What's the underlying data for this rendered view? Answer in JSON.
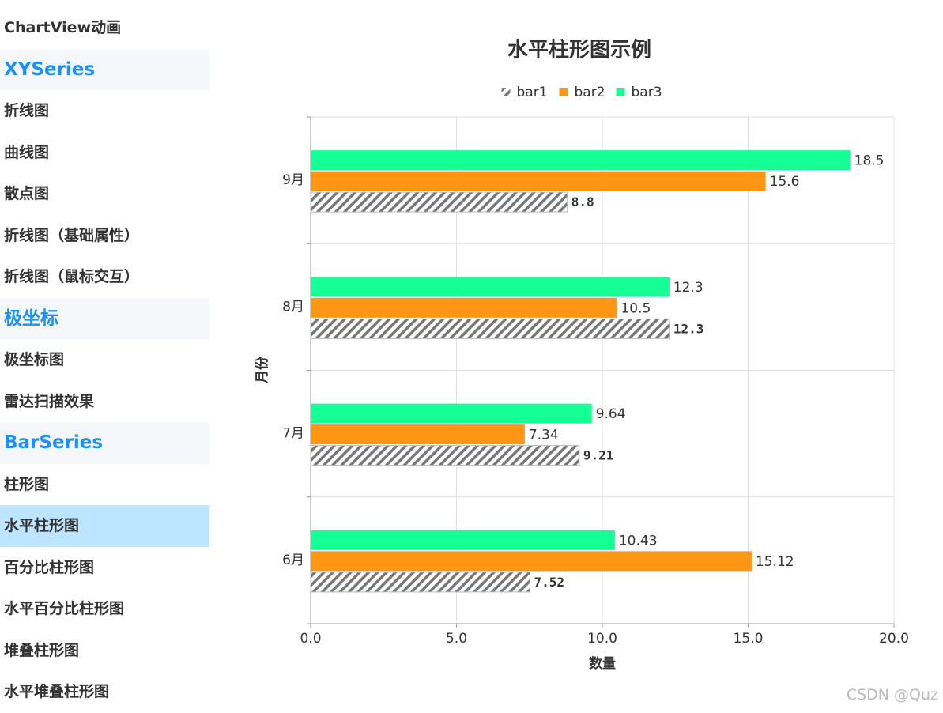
{
  "sidebar": {
    "top": "ChartView动画",
    "sections": [
      {
        "title": "XYSeries",
        "items": [
          {
            "label": "折线图"
          },
          {
            "label": "曲线图"
          },
          {
            "label": "散点图"
          },
          {
            "label": "折线图（基础属性）"
          },
          {
            "label": "折线图（鼠标交互）"
          }
        ]
      },
      {
        "title": "极坐标",
        "items": [
          {
            "label": "极坐标图"
          },
          {
            "label": "雷达扫描效果"
          }
        ]
      },
      {
        "title": "BarSeries",
        "items": [
          {
            "label": "柱形图"
          },
          {
            "label": "水平柱形图",
            "selected": true
          },
          {
            "label": "百分比柱形图"
          },
          {
            "label": "水平百分比柱形图"
          },
          {
            "label": "堆叠柱形图"
          },
          {
            "label": "水平堆叠柱形图"
          }
        ]
      }
    ]
  },
  "chart_data": {
    "type": "hbar",
    "title": "水平柱形图示例",
    "categories": [
      "6月",
      "7月",
      "8月",
      "9月"
    ],
    "series": [
      {
        "name": "bar1",
        "color": "#777777",
        "pattern": "hatch",
        "values": [
          7.52,
          9.21,
          12.3,
          8.8
        ]
      },
      {
        "name": "bar2",
        "color": "#ff9514",
        "values": [
          15.12,
          7.34,
          10.5,
          15.6
        ]
      },
      {
        "name": "bar3",
        "color": "#14ff94",
        "values": [
          10.43,
          9.64,
          12.3,
          18.5
        ]
      }
    ],
    "x_label": "数量",
    "y_label": "月份",
    "xlim": [
      0,
      20
    ],
    "xticks": [
      {
        "value": 0,
        "label": "0.0"
      },
      {
        "value": 5,
        "label": "5.0"
      },
      {
        "value": 10,
        "label": "10.0"
      },
      {
        "value": 15,
        "label": "15.0"
      },
      {
        "value": 20,
        "label": "20.0"
      }
    ],
    "grid": true,
    "legend": "top"
  },
  "watermark": "CSDN @Quz"
}
